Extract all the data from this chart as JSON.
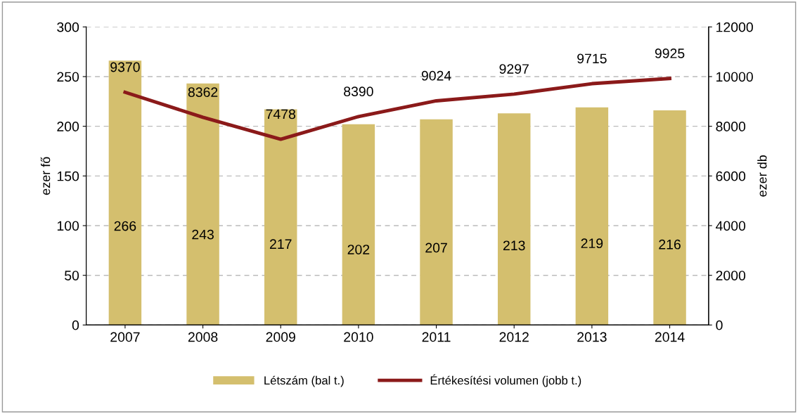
{
  "chart_data": {
    "type": "bar",
    "ylabel": "ezer fő",
    "y2label": "ezer db",
    "categories": [
      "2007",
      "2008",
      "2009",
      "2010",
      "2011",
      "2012",
      "2013",
      "2014"
    ],
    "series": [
      {
        "name": "Létszám (bal t.)",
        "color": "#d4bf6e",
        "values": [
          266,
          243,
          217,
          202,
          207,
          213,
          219,
          216
        ]
      },
      {
        "name": "Értékesítési volumen (jobb t.)",
        "type": "line",
        "axis": "y2",
        "color": "#8b1a1a",
        "values": [
          9370,
          8362,
          7478,
          8390,
          9024,
          9297,
          9715,
          9925
        ]
      }
    ],
    "ylim": [
      0,
      300
    ],
    "yticks": [
      0,
      50,
      100,
      150,
      200,
      250,
      300
    ],
    "y2lim": [
      0,
      12000
    ],
    "y2ticks": [
      0,
      2000,
      4000,
      6000,
      8000,
      10000,
      12000
    ],
    "data_labels": true,
    "grid": "y",
    "legend": "bottom",
    "marker": "none",
    "line_style": "solid"
  }
}
